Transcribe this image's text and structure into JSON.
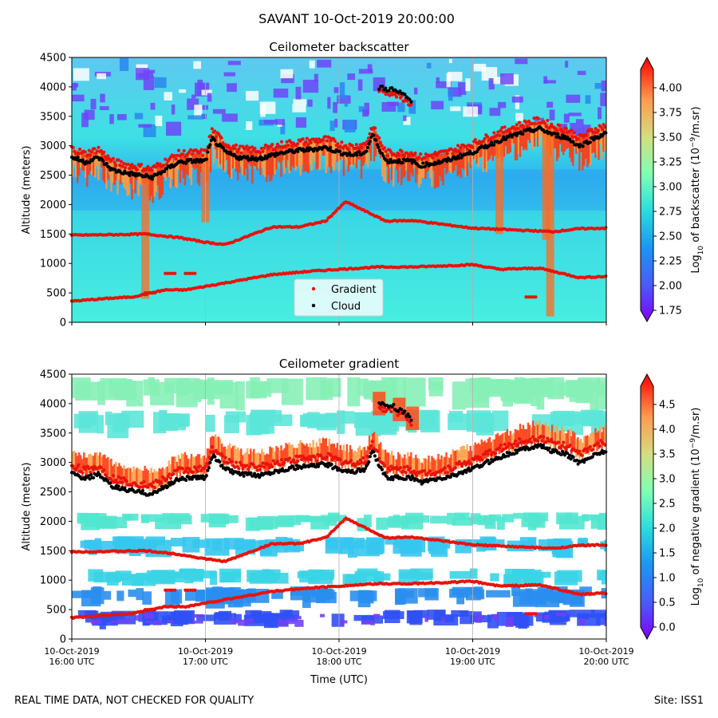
{
  "figure": {
    "suptitle": "SAVANT 10-Oct-2019 20:00:00",
    "footer_left": "REAL TIME DATA, NOT CHECKED FOR QUALITY",
    "footer_right": "Site: ISS1",
    "xlabel": "Time (UTC)"
  },
  "chart_data": [
    {
      "type": "heatmap",
      "title": "Ceilometer backscatter",
      "xlabel": "",
      "ylabel": "Altitude (meters)",
      "ylim": [
        0,
        4500
      ],
      "yticks": [
        0,
        500,
        1000,
        1500,
        2000,
        2500,
        3000,
        3500,
        4000,
        4500
      ],
      "xlim_hours": [
        16.0,
        20.0
      ],
      "xticks_hours": [
        16,
        17,
        18,
        19,
        20
      ],
      "xtick_labels": [],
      "grid": "vertical",
      "colorbar": {
        "label": "Log10 of backscatter (10^-9/m.sr)",
        "range": [
          1.75,
          4.25
        ],
        "ticks": [
          1.75,
          2.0,
          2.25,
          2.5,
          2.75,
          3.0,
          3.25,
          3.5,
          3.75,
          4.0
        ],
        "tick_labels": [
          "1.75",
          "2.00",
          "2.25",
          "2.50",
          "2.75",
          "3.00",
          "3.25",
          "3.50",
          "3.75",
          "4.00"
        ],
        "colormap": "rainbow"
      },
      "legend": {
        "placement": "lower center",
        "entries": [
          "Gradient",
          "Cloud"
        ]
      },
      "series": [
        {
          "name": "Gradient",
          "color": "#e8130b",
          "marker": "dot"
        },
        {
          "name": "Cloud",
          "color": "#000000",
          "marker": "dot"
        }
      ]
    },
    {
      "type": "heatmap",
      "title": "Ceilometer gradient",
      "xlabel": "Time (UTC)",
      "ylabel": "Altitude (meters)",
      "ylim": [
        0,
        4500
      ],
      "yticks": [
        0,
        500,
        1000,
        1500,
        2000,
        2500,
        3000,
        3500,
        4000,
        4500
      ],
      "xlim_hours": [
        16.0,
        20.0
      ],
      "xticks_hours": [
        16,
        17,
        18,
        19,
        20
      ],
      "xtick_labels": [
        [
          "10-Oct-2019",
          "16:00 UTC"
        ],
        [
          "10-Oct-2019",
          "17:00 UTC"
        ],
        [
          "10-Oct-2019",
          "18:00 UTC"
        ],
        [
          "10-Oct-2019",
          "19:00 UTC"
        ],
        [
          "10-Oct-2019",
          "20:00 UTC"
        ]
      ],
      "grid": "vertical",
      "colorbar": {
        "label": "Log10 of negative gradient (10^-9/m.sr)",
        "range": [
          0.0,
          5.0
        ],
        "ticks": [
          0.0,
          0.5,
          1.0,
          1.5,
          2.0,
          2.5,
          3.0,
          3.5,
          4.0,
          4.5
        ],
        "tick_labels": [
          "0.0",
          "0.5",
          "1.0",
          "1.5",
          "2.0",
          "2.5",
          "3.0",
          "3.5",
          "4.0",
          "4.5"
        ],
        "colormap": "rainbow"
      },
      "series": [
        {
          "name": "Gradient",
          "color": "#e8130b",
          "marker": "dot"
        },
        {
          "name": "Cloud",
          "color": "#000000",
          "marker": "dot"
        }
      ]
    }
  ],
  "layers": {
    "cloud_top": [
      [
        16.0,
        2870
      ],
      [
        16.1,
        2780
      ],
      [
        16.2,
        2860
      ],
      [
        16.3,
        2650
      ],
      [
        16.4,
        2600
      ],
      [
        16.5,
        2560
      ],
      [
        16.6,
        2520
      ],
      [
        16.7,
        2650
      ],
      [
        16.8,
        2780
      ],
      [
        16.9,
        2800
      ],
      [
        17.0,
        2800
      ],
      [
        17.05,
        3180
      ],
      [
        17.15,
        2950
      ],
      [
        17.25,
        2860
      ],
      [
        17.4,
        2840
      ],
      [
        17.5,
        2900
      ],
      [
        17.6,
        2950
      ],
      [
        17.7,
        2980
      ],
      [
        17.8,
        3000
      ],
      [
        17.9,
        3030
      ],
      [
        18.0,
        2950
      ],
      [
        18.1,
        2900
      ],
      [
        18.2,
        2950
      ],
      [
        18.25,
        3250
      ],
      [
        18.35,
        2800
      ],
      [
        18.55,
        2800
      ],
      [
        18.6,
        2720
      ],
      [
        18.8,
        2800
      ],
      [
        18.9,
        2880
      ],
      [
        19.0,
        2950
      ],
      [
        19.1,
        3050
      ],
      [
        19.2,
        3150
      ],
      [
        19.3,
        3230
      ],
      [
        19.4,
        3300
      ],
      [
        19.5,
        3350
      ],
      [
        19.6,
        3250
      ],
      [
        19.7,
        3200
      ],
      [
        19.8,
        3050
      ],
      [
        19.9,
        3180
      ],
      [
        20.0,
        3270
      ]
    ],
    "upper_layer": [
      [
        18.3,
        3870
      ],
      [
        18.4,
        3830
      ],
      [
        18.5,
        3720
      ],
      [
        18.55,
        3600
      ]
    ],
    "mid_layer": [
      [
        16.0,
        1480
      ],
      [
        16.35,
        1490
      ],
      [
        16.55,
        1500
      ],
      [
        16.8,
        1440
      ],
      [
        17.0,
        1360
      ],
      [
        17.15,
        1320
      ],
      [
        17.5,
        1620
      ],
      [
        17.7,
        1620
      ],
      [
        17.9,
        1720
      ],
      [
        18.05,
        2050
      ],
      [
        18.35,
        1720
      ],
      [
        18.55,
        1730
      ],
      [
        19.0,
        1600
      ],
      [
        19.6,
        1540
      ],
      [
        19.8,
        1590
      ],
      [
        20.0,
        1600
      ]
    ],
    "low_layer": [
      [
        16.0,
        360
      ],
      [
        16.3,
        410
      ],
      [
        16.45,
        430
      ],
      [
        16.7,
        550
      ],
      [
        16.85,
        550
      ],
      [
        17.5,
        810
      ],
      [
        17.8,
        870
      ],
      [
        18.0,
        900
      ],
      [
        18.3,
        940
      ],
      [
        18.55,
        940
      ],
      [
        18.8,
        960
      ],
      [
        19.0,
        980
      ],
      [
        19.2,
        900
      ],
      [
        19.5,
        920
      ],
      [
        19.8,
        760
      ],
      [
        20.0,
        780
      ]
    ],
    "mid_dropouts": [
      [
        16.55,
        500
      ],
      [
        16.7,
        830
      ],
      [
        16.85,
        830
      ],
      [
        19.4,
        430
      ]
    ]
  }
}
